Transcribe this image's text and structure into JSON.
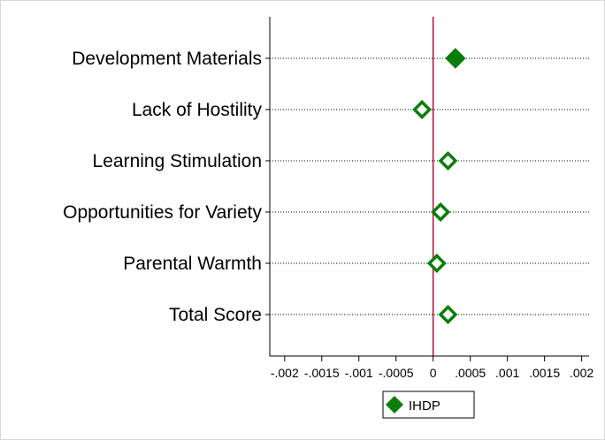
{
  "chart_data": {
    "type": "scatter",
    "orientation": "horizontal",
    "categories": [
      "Development Materials",
      "Lack of Hostility",
      "Learning Stimulation",
      "Opportunities for Variety",
      "Parental Warmth",
      "Total Score"
    ],
    "series": [
      {
        "name": "IHDP",
        "color": "#0a7d0a",
        "values": [
          0.0003,
          -0.00015,
          0.0002,
          0.0001,
          5e-05,
          0.0002
        ],
        "filled": [
          true,
          false,
          false,
          false,
          false,
          false
        ]
      }
    ],
    "xlim": [
      -0.0022,
      0.0021
    ],
    "xticks": [
      -0.002,
      -0.0015,
      -0.001,
      -0.0005,
      0,
      0.0005,
      0.001,
      0.0015,
      0.002
    ],
    "xtick_labels": [
      "-.002",
      "-.0015",
      "-.001",
      "-.0005",
      "0",
      ".0005",
      ".001",
      ".0015",
      ".002"
    ],
    "reference_line": {
      "x": 0,
      "color": "#b0103a"
    },
    "grid": "horizontal-dotted",
    "legend": {
      "position": "bottom-center",
      "entries": [
        "IHDP"
      ]
    }
  }
}
